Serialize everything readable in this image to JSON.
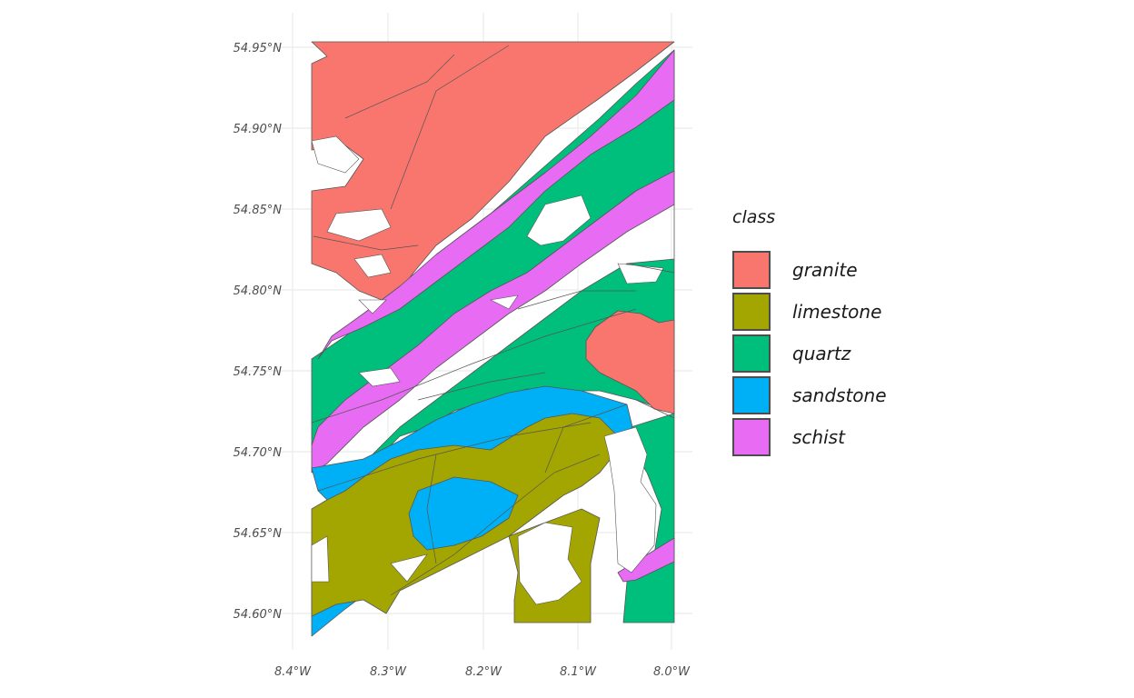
{
  "map": {
    "lat_ticks": [
      "54.95°N",
      "54.90°N",
      "54.85°N",
      "54.80°N",
      "54.75°N",
      "54.70°N",
      "54.65°N",
      "54.60°N"
    ],
    "lon_ticks": [
      "8.4°W",
      "8.3°W",
      "8.2°W",
      "8.1°W",
      "8.0°W"
    ],
    "colors": {
      "granite": "#F8766D",
      "limestone": "#A3A500",
      "quartz": "#00BF7D",
      "sandstone": "#00B0F6",
      "schist": "#E76BF3",
      "border": "#555555",
      "grid": "#ebebeb"
    }
  },
  "legend": {
    "title": "class",
    "items": [
      {
        "label": "granite",
        "color": "#F8766D"
      },
      {
        "label": "limestone",
        "color": "#A3A500"
      },
      {
        "label": "quartz",
        "color": "#00BF7D"
      },
      {
        "label": "sandstone",
        "color": "#00B0F6"
      },
      {
        "label": "schist",
        "color": "#E76BF3"
      }
    ]
  }
}
